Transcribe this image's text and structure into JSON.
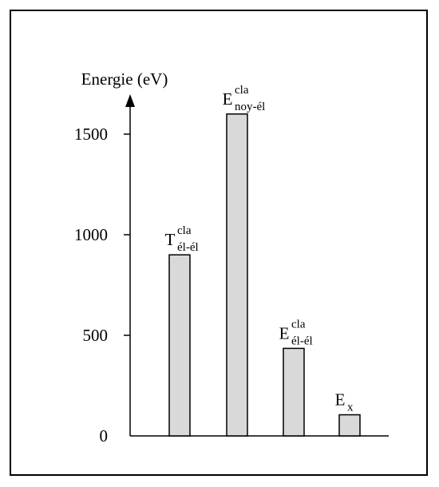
{
  "chart_data": {
    "type": "bar",
    "ylabel": "Energie (eV)",
    "ylim": [
      0,
      1700
    ],
    "yticks": [
      0,
      500,
      1000,
      1500
    ],
    "grid": false,
    "bar_color": "#d9d9d9",
    "categories": [
      {
        "base": "T",
        "sup": "cla",
        "sub": "él-él"
      },
      {
        "base": "E",
        "sup": "cla",
        "sub": "noy-él"
      },
      {
        "base": "E",
        "sup": "cla",
        "sub": "él-él"
      },
      {
        "base": "E",
        "sup": "",
        "sub": "x"
      }
    ],
    "values": [
      900,
      1600,
      435,
      105
    ]
  }
}
